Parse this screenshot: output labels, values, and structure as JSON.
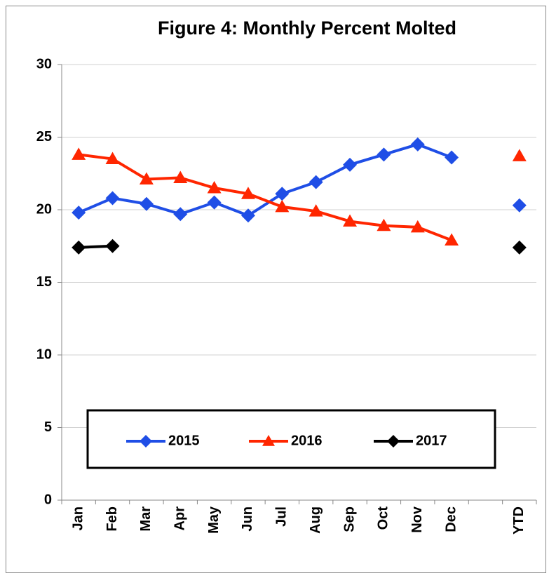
{
  "chart_data": {
    "type": "line",
    "title": "Figure 4: Monthly Percent Molted",
    "categories": [
      "Jan",
      "Feb",
      "Mar",
      "Apr",
      "May",
      "Jun",
      "Jul",
      "Aug",
      "Sep",
      "Oct",
      "Nov",
      "Dec",
      null,
      "YTD"
    ],
    "series": [
      {
        "name": "2015",
        "color": "#1f4ee6",
        "marker": "diamond",
        "values": [
          19.8,
          20.8,
          20.4,
          19.7,
          20.5,
          19.6,
          21.1,
          21.9,
          23.1,
          23.8,
          24.5,
          23.6,
          null,
          20.3
        ]
      },
      {
        "name": "2016",
        "color": "#ff2600",
        "marker": "triangle",
        "values": [
          23.8,
          23.5,
          22.1,
          22.2,
          21.5,
          21.1,
          20.2,
          19.9,
          19.2,
          18.9,
          18.8,
          17.9,
          null,
          23.7
        ]
      },
      {
        "name": "2017",
        "color": "#000000",
        "marker": "diamond",
        "values": [
          17.4,
          17.5,
          null,
          null,
          null,
          null,
          null,
          null,
          null,
          null,
          null,
          null,
          null,
          17.4
        ]
      }
    ],
    "ylim": [
      0,
      30
    ],
    "yticks": [
      0,
      5,
      10,
      15,
      20,
      25,
      30
    ],
    "grid": true,
    "legend": "lower center"
  }
}
